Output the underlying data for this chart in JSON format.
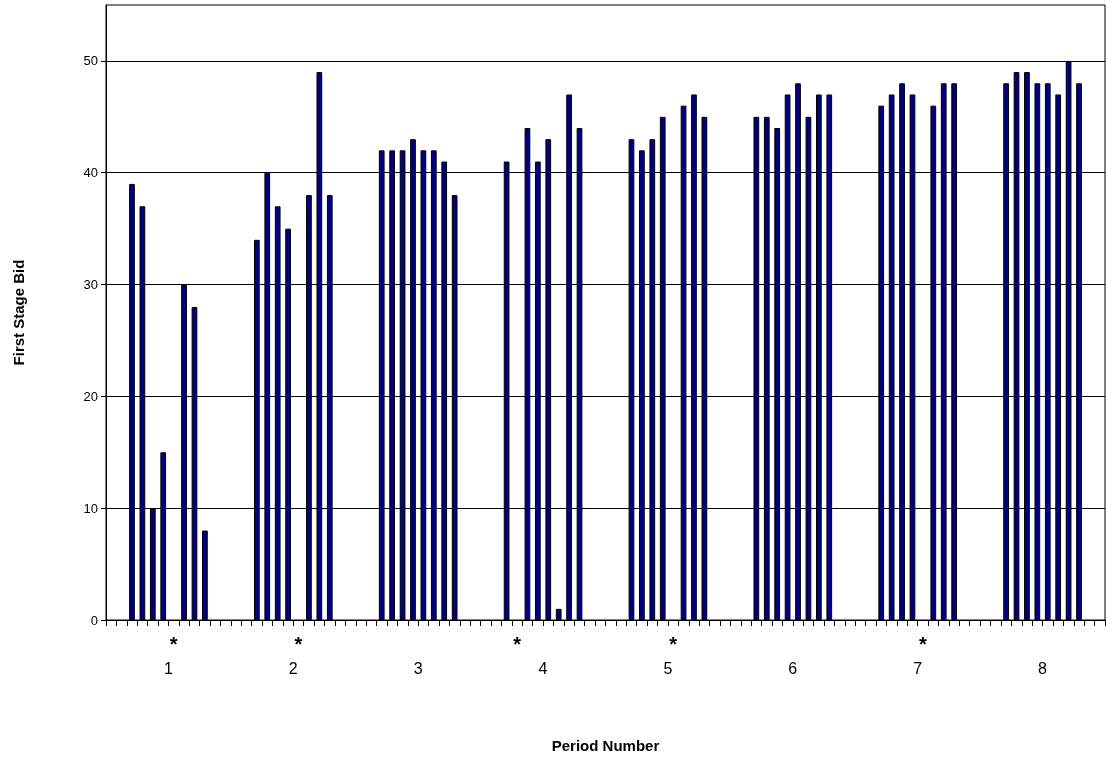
{
  "chart_data": {
    "type": "bar",
    "xlabel": "Period Number",
    "ylabel": "First Stage Bid",
    "categories": [
      "1",
      "2",
      "3",
      "4",
      "5",
      "6",
      "7",
      "8"
    ],
    "series": [
      {
        "color": "#000080",
        "values": [
          39,
          34,
          42,
          41,
          43,
          45,
          46,
          48
        ]
      },
      {
        "color": "#000080",
        "values": [
          37,
          40,
          42,
          null,
          42,
          45,
          47,
          49
        ]
      },
      {
        "color": "#000080",
        "values": [
          10,
          37,
          42,
          44,
          43,
          44,
          48,
          49
        ]
      },
      {
        "color": "#000080",
        "values": [
          15,
          35,
          43,
          41,
          45,
          47,
          47,
          48
        ]
      },
      {
        "color": "#000080",
        "values": [
          null,
          null,
          42,
          43,
          null,
          48,
          null,
          48
        ]
      },
      {
        "color": "#000080",
        "values": [
          30,
          38,
          42,
          1,
          46,
          45,
          46,
          47
        ]
      },
      {
        "color": "#000080",
        "values": [
          28,
          49,
          41,
          47,
          47,
          47,
          48,
          50
        ]
      },
      {
        "color": "#000080",
        "values": [
          8,
          38,
          38,
          44,
          45,
          47,
          48,
          48
        ]
      }
    ],
    "annotations": [
      "*",
      "*",
      "*",
      "*",
      "*"
    ],
    "ylim": [
      0,
      55
    ],
    "yticks": [
      0,
      10,
      20,
      30,
      40,
      50
    ],
    "grid": "y"
  }
}
